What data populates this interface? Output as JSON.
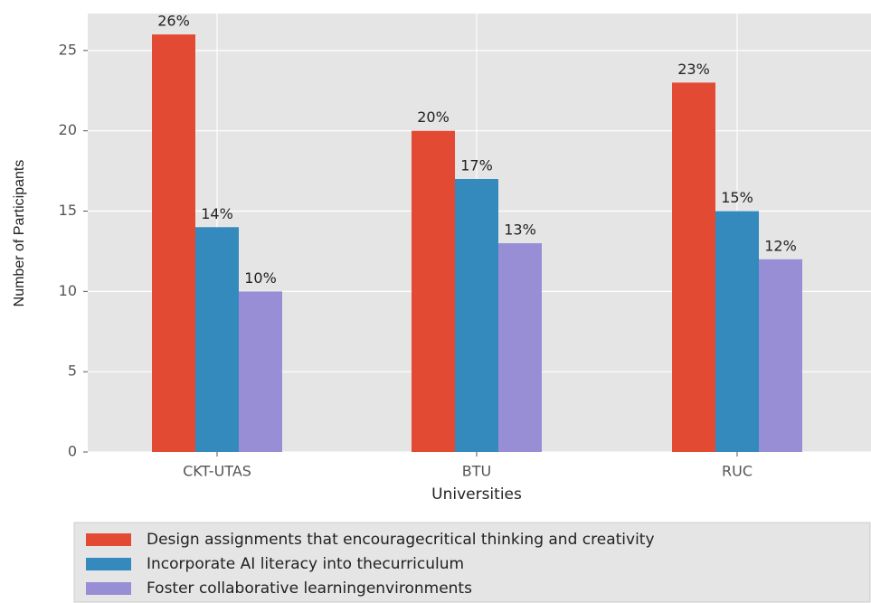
{
  "chart_data": {
    "type": "bar",
    "xlabel": "Universities",
    "ylabel": "Number of Participants",
    "categories": [
      "CKT-UTAS",
      "BTU",
      "RUC"
    ],
    "series": [
      {
        "name": "Design assignments that encouragecritical thinking and creativity",
        "color": "#E24A33",
        "values": [
          26,
          20,
          23
        ],
        "value_labels": [
          "26%",
          "20%",
          "23%"
        ]
      },
      {
        "name": "Incorporate AI literacy into thecurriculum",
        "color": "#348ABD",
        "values": [
          14,
          17,
          15
        ],
        "value_labels": [
          "14%",
          "17%",
          "15%"
        ]
      },
      {
        "name": "Foster collaborative learningenvironments",
        "color": "#988ED5",
        "values": [
          10,
          13,
          12
        ],
        "value_labels": [
          "10%",
          "13%",
          "12%"
        ]
      }
    ],
    "ylim": [
      0,
      27.3
    ],
    "yticks": [
      0,
      5,
      10,
      15,
      20,
      25
    ],
    "grid": true,
    "legend": "below"
  }
}
